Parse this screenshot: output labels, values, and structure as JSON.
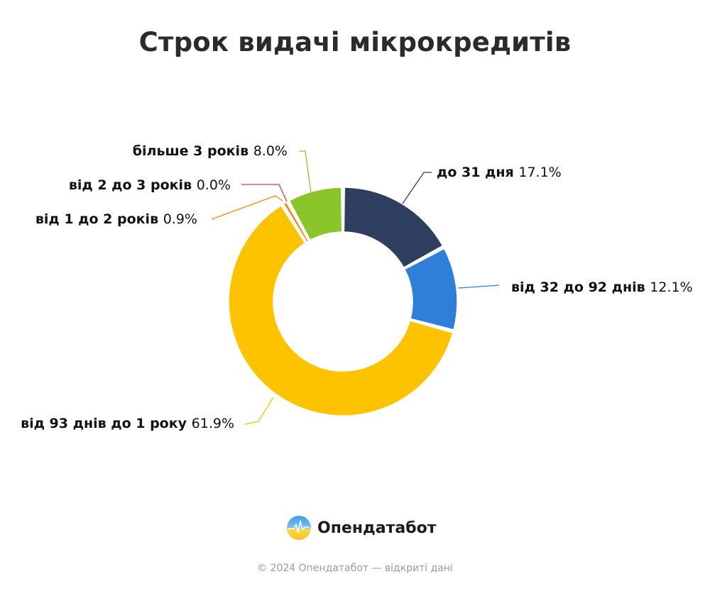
{
  "header": {
    "title": "Строк видачі мікрокредитів"
  },
  "chart_data": {
    "type": "pie",
    "variant": "donut",
    "title": "Строк видачі мікрокредитів",
    "categories": [
      "до 31 дня",
      "від 32 до 92 днів",
      "від 93 днів до 1 року",
      "від 1 до 2 років",
      "від 2 до 3 років",
      "більше 3 років"
    ],
    "values": [
      17.1,
      12.1,
      61.9,
      0.9,
      0.0,
      8.0
    ],
    "value_labels": [
      "17.1%",
      "12.1%",
      "61.9%",
      "0.9%",
      "0.0%",
      "8.0%"
    ],
    "colors": [
      "#2e3e5f",
      "#2f7fd8",
      "#fdc300",
      "#f08a0c",
      "#d63a4a",
      "#8ac52a"
    ],
    "unit": "%",
    "start_angle_deg": 0,
    "direction": "clockwise",
    "legend": "none (labels with leader lines)"
  },
  "brand": {
    "name": "Опендатабот",
    "icon": "opendatabot-logo-icon"
  },
  "footer": {
    "text": "© 2024 Опендатабот — відкриті дані"
  }
}
